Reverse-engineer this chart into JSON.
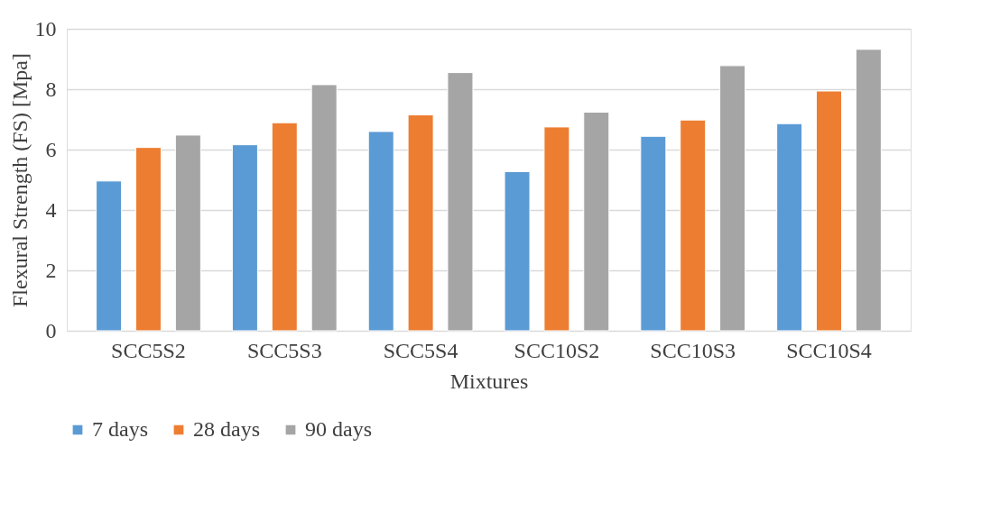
{
  "chart_data": {
    "type": "bar",
    "xlabel": "Mixtures",
    "ylabel": "Flexural Strength (FS) [Mpa]",
    "categories": [
      "SCC5S2",
      "SCC5S3",
      "SCC5S4",
      "SCC10S2",
      "SCC10S3",
      "SCC10S4"
    ],
    "series": [
      {
        "name": "7 days",
        "color": "#5b9bd5",
        "values": [
          4.96,
          6.16,
          6.6,
          5.27,
          6.44,
          6.86
        ]
      },
      {
        "name": "28 days",
        "color": "#ed7d31",
        "values": [
          6.07,
          6.89,
          7.15,
          6.75,
          6.98,
          7.94
        ]
      },
      {
        "name": "90 days",
        "color": "#a5a5a5",
        "values": [
          6.48,
          8.15,
          8.55,
          7.24,
          8.78,
          9.32
        ]
      }
    ],
    "ylim": [
      0,
      10
    ],
    "yticks": [
      0,
      2,
      4,
      6,
      8,
      10
    ],
    "grid": "y",
    "legend": "bottom"
  }
}
